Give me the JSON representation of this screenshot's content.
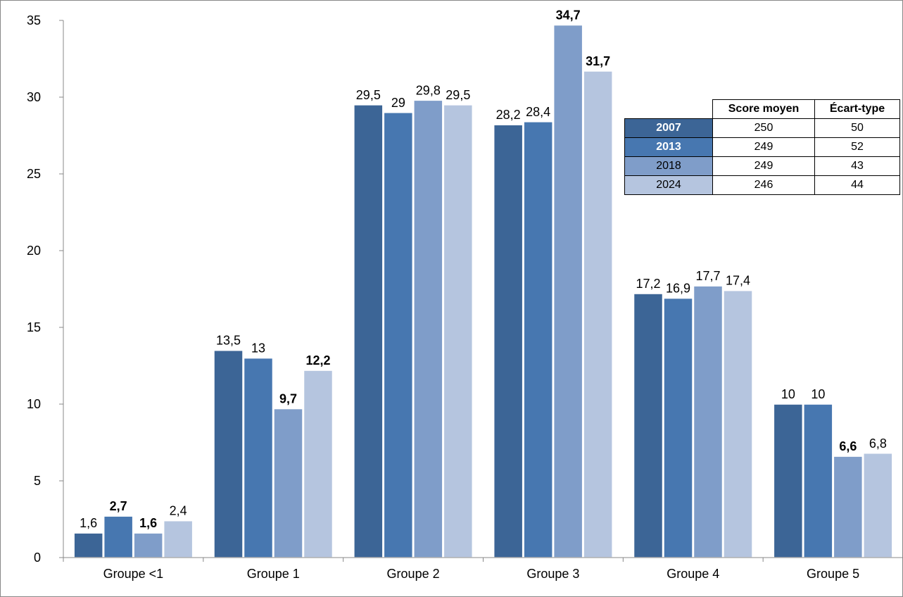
{
  "chart_data": {
    "type": "bar",
    "categories": [
      "Groupe <1",
      "Groupe 1",
      "Groupe 2",
      "Groupe 3",
      "Groupe 4",
      "Groupe 5"
    ],
    "series": [
      {
        "name": "2007",
        "color": "#3c6596",
        "values": [
          1.6,
          13.5,
          29.5,
          28.2,
          17.2,
          10
        ],
        "labels": [
          "1,6",
          "13,5",
          "29,5",
          "28,2",
          "17,2",
          "10"
        ],
        "bold": [
          false,
          false,
          false,
          false,
          false,
          false
        ]
      },
      {
        "name": "2013",
        "color": "#4777b0",
        "values": [
          2.7,
          13,
          29,
          28.4,
          16.9,
          10
        ],
        "labels": [
          "2,7",
          "13",
          "29",
          "28,4",
          "16,9",
          "10"
        ],
        "bold": [
          true,
          false,
          false,
          false,
          false,
          false
        ]
      },
      {
        "name": "2018",
        "color": "#7f9dc9",
        "values": [
          1.6,
          9.7,
          29.8,
          34.7,
          17.7,
          6.6
        ],
        "labels": [
          "1,6",
          "9,7",
          "29,8",
          "34,7",
          "17,7",
          "6,6"
        ],
        "bold": [
          true,
          true,
          false,
          true,
          false,
          true
        ]
      },
      {
        "name": "2024",
        "color": "#b5c5df",
        "values": [
          2.4,
          12.2,
          29.5,
          31.7,
          17.4,
          6.8
        ],
        "labels": [
          "2,4",
          "12,2",
          "29,5",
          "31,7",
          "17,4",
          "6,8"
        ],
        "bold": [
          false,
          true,
          false,
          true,
          false,
          false
        ]
      }
    ],
    "ylim": [
      0,
      35
    ],
    "yticks": [
      "0",
      "5",
      "10",
      "15",
      "20",
      "25",
      "30",
      "35"
    ],
    "grid": false,
    "legend": "top-right table"
  },
  "legend_table": {
    "headers": [
      "Score moyen",
      "Écart-type"
    ],
    "rows": [
      {
        "year": "2007",
        "score": "250",
        "sd": "50",
        "color": "#3c6596",
        "text_color": "#ffffff",
        "bold": true
      },
      {
        "year": "2013",
        "score": "249",
        "sd": "52",
        "color": "#4777b0",
        "text_color": "#ffffff",
        "bold": true
      },
      {
        "year": "2018",
        "score": "249",
        "sd": "43",
        "color": "#7f9dc9",
        "text_color": "#000000",
        "bold": false
      },
      {
        "year": "2024",
        "score": "246",
        "sd": "44",
        "color": "#b5c5df",
        "text_color": "#000000",
        "bold": false
      }
    ]
  }
}
